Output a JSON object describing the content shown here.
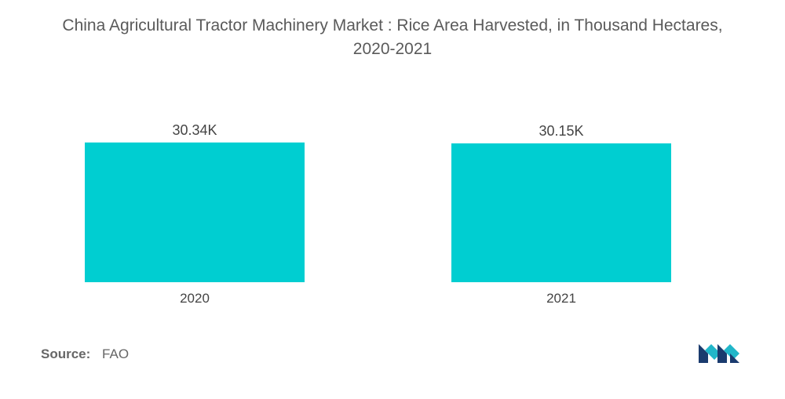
{
  "chart_data": {
    "type": "bar",
    "title_line1": "China Agricultural Tractor Machinery Market : Rice Area Harvested, in Thousand Hectares,",
    "title_line2": "2020-2021",
    "categories": [
      "2020",
      "2021"
    ],
    "values": [
      30.34,
      30.15
    ],
    "data_labels": [
      "30.34K",
      "30.15K"
    ],
    "ylim": [
      0,
      32
    ],
    "color": "#00CED1",
    "grid": false,
    "legend": "none"
  },
  "source": {
    "label": "Source:",
    "value": "FAO"
  },
  "logo": {
    "icon": "mordor-intelligence-logo",
    "colors": [
      "#1a3b6e",
      "#21b6c9"
    ]
  }
}
